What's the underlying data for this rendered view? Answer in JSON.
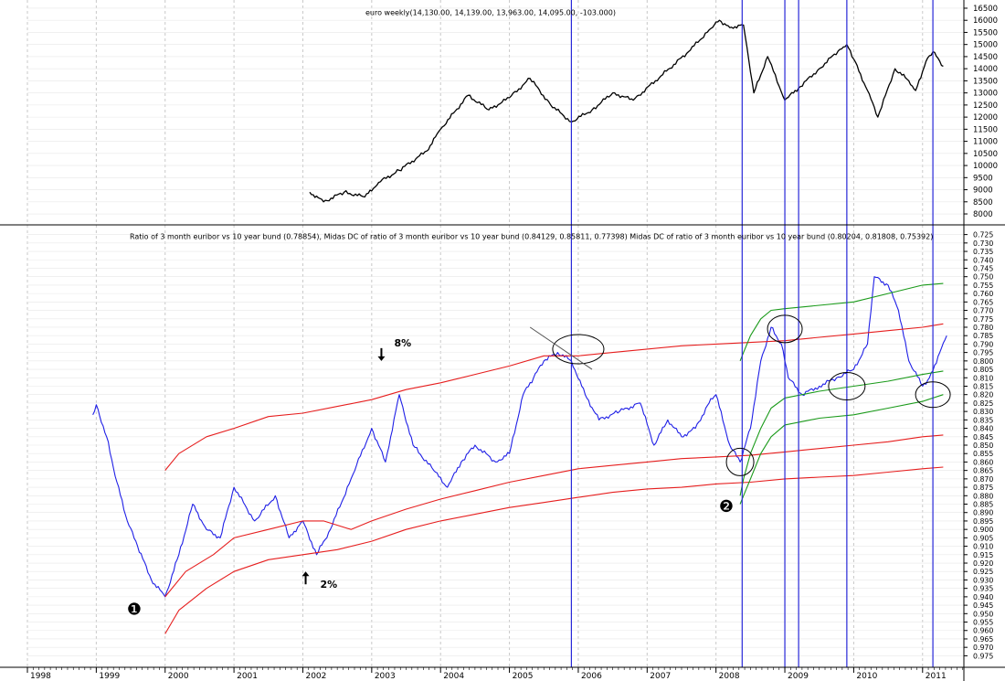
{
  "chart_data": [
    {
      "type": "line",
      "title": "euro weekly(14,130.00, 14,139.00, 13,963.00, 14,095.00, -103.000)",
      "y_ticks": [
        "16500",
        "16000",
        "15500",
        "15000",
        "14500",
        "14000",
        "13500",
        "13000",
        "12500",
        "12000",
        "11500",
        "11000",
        "10500",
        "10000",
        "9500",
        "9000",
        "8500",
        "8000"
      ],
      "ylim": [
        7850,
        16650
      ],
      "series": [
        {
          "color": "#000000",
          "x": [
            2002.1,
            2002.3,
            2002.6,
            2002.9,
            2003.1,
            2003.4,
            2003.8,
            2004.0,
            2004.4,
            2004.7,
            2005.0,
            2005.3,
            2005.6,
            2005.9,
            2006.2,
            2006.5,
            2006.8,
            2007.2,
            2007.6,
            2007.9,
            2008.05,
            2008.2,
            2008.4,
            2008.55,
            2008.75,
            2009.0,
            2009.2,
            2009.5,
            2009.8,
            2009.9,
            2010.0,
            2010.2,
            2010.35,
            2010.6,
            2010.8,
            2010.9,
            2011.05,
            2011.15,
            2011.3
          ],
          "y": [
            8900,
            8500,
            8900,
            8700,
            9300,
            9800,
            10600,
            11500,
            12900,
            12300,
            12800,
            13600,
            12500,
            11800,
            12300,
            13000,
            12700,
            13700,
            14700,
            15600,
            16000,
            15700,
            15800,
            13000,
            14500,
            12700,
            13200,
            14000,
            14800,
            15000,
            14400,
            13100,
            12000,
            14000,
            13500,
            13100,
            14300,
            14700,
            14100
          ]
        }
      ]
    },
    {
      "type": "line",
      "title": "Ratio of 3 month euribor vs 10 year bund (0.78854), Midas DC of ratio of 3 month euribor vs 10 year bund (0.84129, 0.85811, 0.77398) Midas DC of ratio of 3 month euribor vs 10 year bund (0.80204, 0.81808, 0.75392)",
      "y_axis_inverted": true,
      "y_ticks": [
        "0.725",
        "0.730",
        "0.735",
        "0.740",
        "0.745",
        "0.750",
        "0.755",
        "0.760",
        "0.765",
        "0.770",
        "0.775",
        "0.780",
        "0.785",
        "0.790",
        "0.795",
        "0.800",
        "0.805",
        "0.810",
        "0.815",
        "0.820",
        "0.825",
        "0.830",
        "0.835",
        "0.840",
        "0.845",
        "0.850",
        "0.855",
        "0.860",
        "0.865",
        "0.870",
        "0.875",
        "0.880",
        "0.885",
        "0.890",
        "0.895",
        "0.900",
        "0.905",
        "0.910",
        "0.915",
        "0.920",
        "0.925",
        "0.930",
        "0.935",
        "0.940",
        "0.945",
        "0.950",
        "0.955",
        "0.960",
        "0.965",
        "0.970",
        "0.975"
      ],
      "ylim": [
        0.7225,
        0.9775
      ],
      "series": [
        {
          "color": "#1f1fe6",
          "x": [
            1998.95,
            1999.0,
            1999.15,
            1999.3,
            1999.45,
            1999.6,
            1999.8,
            2000.0,
            2000.2,
            2000.4,
            2000.6,
            2000.8,
            2001.0,
            2001.3,
            2001.6,
            2001.8,
            2002.0,
            2002.2,
            2002.4,
            2002.7,
            2003.0,
            2003.2,
            2003.4,
            2003.6,
            2003.9,
            2004.1,
            2004.3,
            2004.5,
            2004.8,
            2005.0,
            2005.2,
            2005.35,
            2005.5,
            2005.7,
            2005.9,
            2006.1,
            2006.3,
            2006.6,
            2006.9,
            2007.1,
            2007.3,
            2007.5,
            2007.7,
            2007.9,
            2008.0,
            2008.2,
            2008.35,
            2008.5,
            2008.65,
            2008.8,
            2008.95,
            2009.05,
            2009.25,
            2009.5,
            2009.75,
            2010.0,
            2010.2,
            2010.3,
            2010.5,
            2010.65,
            2010.8,
            2011.0,
            2011.1,
            2011.25,
            2011.35
          ],
          "y": [
            0.832,
            0.826,
            0.845,
            0.872,
            0.895,
            0.91,
            0.93,
            0.94,
            0.915,
            0.885,
            0.9,
            0.905,
            0.875,
            0.895,
            0.88,
            0.905,
            0.895,
            0.915,
            0.9,
            0.87,
            0.84,
            0.86,
            0.82,
            0.85,
            0.865,
            0.875,
            0.86,
            0.85,
            0.86,
            0.855,
            0.82,
            0.81,
            0.8,
            0.795,
            0.8,
            0.82,
            0.835,
            0.83,
            0.825,
            0.85,
            0.835,
            0.845,
            0.84,
            0.825,
            0.82,
            0.85,
            0.86,
            0.84,
            0.8,
            0.78,
            0.79,
            0.81,
            0.82,
            0.815,
            0.81,
            0.805,
            0.79,
            0.75,
            0.755,
            0.77,
            0.8,
            0.815,
            0.81,
            0.795,
            0.785
          ]
        },
        {
          "color": "#e61e1e",
          "x": [
            2000.0,
            2000.2,
            2000.6,
            2001.0,
            2001.5,
            2002.0,
            2002.5,
            2003.0,
            2003.5,
            2004.0,
            2004.5,
            2005.0,
            2005.5,
            2006.0,
            2006.5,
            2007.0,
            2007.5,
            2008.0,
            2008.5,
            2009.0,
            2009.5,
            2010.0,
            2010.5,
            2011.0,
            2011.3
          ],
          "y": [
            0.865,
            0.855,
            0.845,
            0.84,
            0.833,
            0.831,
            0.827,
            0.823,
            0.817,
            0.813,
            0.808,
            0.803,
            0.797,
            0.797,
            0.795,
            0.793,
            0.791,
            0.79,
            0.789,
            0.788,
            0.786,
            0.784,
            0.782,
            0.78,
            0.778
          ]
        },
        {
          "color": "#e61e1e",
          "x": [
            2000.0,
            2000.3,
            2000.7,
            2001.0,
            2001.5,
            2002.0,
            2002.3,
            2002.7,
            2003.0,
            2003.5,
            2004.0,
            2004.5,
            2005.0,
            2005.5,
            2006.0,
            2006.5,
            2007.0,
            2007.5,
            2008.0,
            2008.5,
            2009.0,
            2009.5,
            2010.0,
            2010.5,
            2011.0,
            2011.3
          ],
          "y": [
            0.94,
            0.925,
            0.915,
            0.905,
            0.9,
            0.895,
            0.895,
            0.9,
            0.895,
            0.888,
            0.882,
            0.877,
            0.872,
            0.868,
            0.864,
            0.862,
            0.86,
            0.858,
            0.857,
            0.856,
            0.854,
            0.852,
            0.85,
            0.848,
            0.845,
            0.844
          ]
        },
        {
          "color": "#e61e1e",
          "x": [
            2000.0,
            2000.2,
            2000.6,
            2001.0,
            2001.5,
            2002.0,
            2002.5,
            2003.0,
            2003.5,
            2004.0,
            2004.5,
            2005.0,
            2005.5,
            2006.0,
            2006.5,
            2007.0,
            2007.5,
            2008.0,
            2008.5,
            2009.0,
            2009.5,
            2010.0,
            2010.5,
            2011.0,
            2011.3
          ],
          "y": [
            0.962,
            0.948,
            0.935,
            0.925,
            0.918,
            0.915,
            0.912,
            0.907,
            0.9,
            0.895,
            0.891,
            0.887,
            0.884,
            0.881,
            0.878,
            0.876,
            0.875,
            0.873,
            0.872,
            0.87,
            0.869,
            0.868,
            0.866,
            0.864,
            0.863
          ]
        },
        {
          "color": "#1a9a1a",
          "x": [
            2008.35,
            2008.4,
            2008.5,
            2008.65,
            2008.8,
            2009.0,
            2009.5,
            2010.0,
            2010.5,
            2011.0,
            2011.3
          ],
          "y": [
            0.8,
            0.795,
            0.785,
            0.775,
            0.77,
            0.769,
            0.767,
            0.765,
            0.76,
            0.755,
            0.754
          ],
          "note": ""
        },
        {
          "color": "#1a9a1a",
          "x": [
            2008.35,
            2008.4,
            2008.5,
            2008.65,
            2008.8,
            2009.0,
            2009.5,
            2010.0,
            2010.5,
            2011.0,
            2011.3
          ],
          "y": [
            0.88,
            0.87,
            0.855,
            0.84,
            0.828,
            0.822,
            0.818,
            0.815,
            0.812,
            0.808,
            0.806
          ]
        },
        {
          "color": "#1a9a1a",
          "x": [
            2008.35,
            2008.4,
            2008.5,
            2008.65,
            2008.8,
            2009.0,
            2009.5,
            2010.0,
            2010.5,
            2011.0,
            2011.3
          ],
          "y": [
            0.885,
            0.88,
            0.87,
            0.855,
            0.845,
            0.838,
            0.834,
            0.832,
            0.828,
            0.824,
            0.82
          ]
        }
      ],
      "annotations": [
        {
          "text": "8%",
          "arrow": "down",
          "x": 2003.3,
          "y": 0.8
        },
        {
          "text": "2%",
          "arrow": "up",
          "x": 2002.2,
          "y": 0.925
        },
        {
          "text": "❶",
          "x": 1999.55,
          "y": 0.948
        },
        {
          "text": "❷",
          "x": 2008.15,
          "y": 0.887
        }
      ]
    }
  ],
  "x_axis": {
    "labels": [
      "1998",
      "1999",
      "2000",
      "2001",
      "2002",
      "2003",
      "2004",
      "2005",
      "2006",
      "2007",
      "2008",
      "2009",
      "2010",
      "2011"
    ],
    "xlim": [
      1998.0,
      2011.6
    ]
  },
  "vertical_markers": [
    2005.9,
    2008.38,
    2009.0,
    2009.2,
    2009.9,
    2011.15
  ],
  "circles": [
    {
      "x": 2006.0,
      "y": 0.793,
      "rx": 28,
      "ry": 16
    },
    {
      "x": 2008.35,
      "y": 0.86,
      "rx": 15,
      "ry": 15
    },
    {
      "x": 2009.0,
      "y": 0.781,
      "rx": 19,
      "ry": 15
    },
    {
      "x": 2009.9,
      "y": 0.815,
      "rx": 20,
      "ry": 15
    },
    {
      "x": 2011.15,
      "y": 0.82,
      "rx": 19,
      "ry": 14
    }
  ],
  "trendline": {
    "x1": 2005.3,
    "y1": 0.78,
    "x2": 2006.2,
    "y2": 0.805
  }
}
